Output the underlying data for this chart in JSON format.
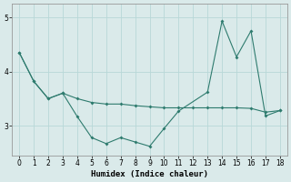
{
  "xlabel": "Humidex (Indice chaleur)",
  "bg_color": "#daeaea",
  "line_color": "#2e7b6e",
  "grid_color": "#b8d8d8",
  "xlim": [
    -0.5,
    18.5
  ],
  "ylim": [
    2.45,
    5.25
  ],
  "xticks": [
    0,
    1,
    2,
    3,
    4,
    5,
    6,
    7,
    8,
    9,
    10,
    11,
    12,
    13,
    14,
    15,
    16,
    17,
    18
  ],
  "yticks": [
    3,
    4,
    5
  ],
  "curve1_x": [
    0,
    1,
    2,
    3,
    4,
    5,
    6,
    7,
    8,
    9,
    10,
    11,
    12,
    13,
    14,
    15,
    16,
    17,
    18
  ],
  "curve1_y": [
    4.35,
    3.82,
    3.5,
    3.6,
    3.5,
    3.43,
    3.4,
    3.4,
    3.37,
    3.35,
    3.33,
    3.33,
    3.33,
    3.33,
    3.33,
    3.33,
    3.32,
    3.25,
    3.28
  ],
  "curve2_x": [
    0,
    1,
    2,
    3,
    4,
    5,
    6,
    7,
    8,
    9,
    10,
    11,
    13,
    14,
    15,
    16,
    17,
    18
  ],
  "curve2_y": [
    4.35,
    3.82,
    3.5,
    3.6,
    3.17,
    2.78,
    2.67,
    2.78,
    2.7,
    2.62,
    2.95,
    3.27,
    3.62,
    4.93,
    4.27,
    4.75,
    3.18,
    3.28
  ]
}
